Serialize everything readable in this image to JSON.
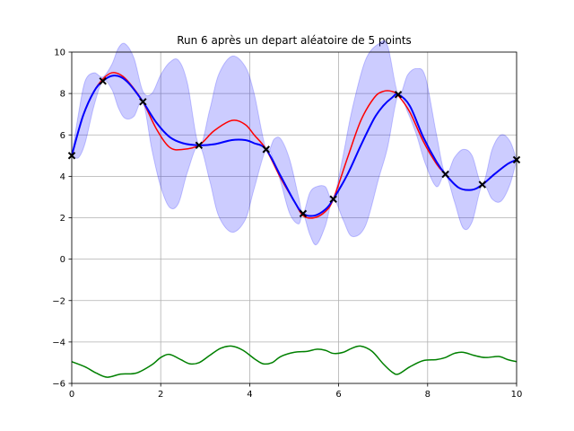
{
  "chart_data": {
    "type": "line",
    "title": "Run 6 après un depart aléatoire de 5 points",
    "xlabel": "",
    "ylabel": "",
    "xlim": [
      0,
      10
    ],
    "ylim": [
      -6,
      10
    ],
    "grid": true,
    "x_ticks": [
      0,
      2,
      4,
      6,
      8,
      10
    ],
    "y_ticks": [
      -6,
      -4,
      -2,
      0,
      2,
      4,
      6,
      8,
      10
    ],
    "x_tick_labels": [
      "0",
      "2",
      "4",
      "6",
      "8",
      "10"
    ],
    "y_tick_labels": [
      "−6",
      "−4",
      "−2",
      "0",
      "2",
      "4",
      "6",
      "8",
      "10"
    ],
    "colors": {
      "true_function": "#ff0000",
      "mean": "#0000ff",
      "band": "#0000ff",
      "acquisition": "#008000",
      "samples": "#000000"
    },
    "series": [
      {
        "role": "true-function",
        "x": [
          0,
          0.25,
          0.5,
          0.7,
          0.9,
          1.1,
          1.3,
          1.6,
          1.9,
          2.2,
          2.5,
          2.86,
          3.2,
          3.6,
          3.9,
          4.1,
          4.37,
          4.7,
          5.0,
          5.2,
          5.45,
          5.7,
          5.88,
          6.2,
          6.5,
          6.8,
          7.0,
          7.2,
          7.34,
          7.6,
          7.9,
          8.2,
          8.4,
          8.7,
          9.0,
          9.23,
          9.5,
          9.8,
          10
        ],
        "values": [
          5.0,
          6.9,
          8.1,
          8.7,
          9.0,
          8.9,
          8.5,
          7.6,
          6.3,
          5.4,
          5.3,
          5.5,
          6.2,
          6.7,
          6.5,
          6.0,
          5.3,
          3.9,
          2.8,
          2.1,
          2.0,
          2.3,
          2.9,
          4.9,
          6.7,
          7.8,
          8.1,
          8.1,
          7.9,
          7.1,
          5.7,
          4.6,
          4.1,
          3.45,
          3.35,
          3.6,
          4.1,
          4.6,
          4.8
        ]
      },
      {
        "role": "posterior-mean",
        "x": [
          0,
          0.25,
          0.5,
          0.7,
          0.9,
          1.1,
          1.3,
          1.6,
          1.9,
          2.2,
          2.5,
          2.86,
          3.2,
          3.6,
          3.9,
          4.1,
          4.37,
          4.7,
          5.0,
          5.2,
          5.45,
          5.7,
          5.88,
          6.2,
          6.5,
          6.8,
          7.0,
          7.2,
          7.34,
          7.6,
          7.9,
          8.2,
          8.4,
          8.7,
          9.0,
          9.23,
          9.5,
          9.8,
          10
        ],
        "values": [
          5.0,
          6.9,
          8.1,
          8.6,
          8.85,
          8.8,
          8.45,
          7.6,
          6.6,
          5.9,
          5.6,
          5.5,
          5.55,
          5.75,
          5.75,
          5.6,
          5.3,
          4.0,
          2.8,
          2.2,
          2.1,
          2.4,
          2.9,
          4.1,
          5.5,
          6.8,
          7.4,
          7.8,
          7.95,
          7.4,
          5.9,
          4.7,
          4.1,
          3.45,
          3.35,
          3.6,
          4.1,
          4.6,
          4.8
        ]
      },
      {
        "role": "confidence-upper",
        "x": [
          0,
          0.15,
          0.3,
          0.5,
          0.7,
          0.9,
          1.05,
          1.2,
          1.4,
          1.6,
          1.8,
          2.0,
          2.2,
          2.4,
          2.6,
          2.86,
          3.1,
          3.3,
          3.6,
          3.9,
          4.1,
          4.37,
          4.55,
          4.7,
          4.9,
          5.1,
          5.2,
          5.35,
          5.5,
          5.7,
          5.88,
          6.1,
          6.3,
          6.6,
          6.9,
          7.1,
          7.34,
          7.55,
          7.75,
          7.95,
          8.2,
          8.4,
          8.6,
          8.8,
          9.0,
          9.23,
          9.45,
          9.65,
          9.85,
          10
        ],
        "values": [
          5.0,
          7.0,
          8.6,
          9.0,
          8.8,
          9.4,
          10.2,
          10.4,
          9.7,
          8.1,
          8.0,
          8.9,
          9.5,
          9.6,
          8.5,
          5.5,
          7.2,
          8.9,
          9.8,
          9.3,
          8.0,
          5.3,
          5.8,
          5.8,
          4.8,
          3.0,
          2.2,
          3.2,
          3.5,
          3.5,
          2.9,
          5.0,
          7.2,
          9.6,
          10.4,
          10.3,
          7.95,
          8.9,
          9.2,
          8.8,
          6.0,
          4.1,
          4.9,
          5.3,
          5.0,
          3.6,
          5.3,
          6.0,
          5.7,
          4.8
        ]
      },
      {
        "role": "confidence-lower",
        "x": [
          0,
          0.15,
          0.3,
          0.5,
          0.7,
          0.9,
          1.05,
          1.2,
          1.4,
          1.6,
          1.8,
          2.0,
          2.2,
          2.4,
          2.6,
          2.86,
          3.1,
          3.3,
          3.6,
          3.9,
          4.1,
          4.37,
          4.55,
          4.7,
          4.9,
          5.1,
          5.2,
          5.35,
          5.5,
          5.7,
          5.88,
          6.1,
          6.3,
          6.6,
          6.9,
          7.1,
          7.34,
          7.55,
          7.75,
          7.95,
          8.2,
          8.4,
          8.6,
          8.8,
          9.0,
          9.23,
          9.45,
          9.65,
          9.85,
          10
        ],
        "values": [
          5.0,
          4.9,
          5.6,
          7.4,
          8.6,
          8.2,
          7.3,
          6.8,
          6.9,
          7.6,
          5.3,
          3.5,
          2.5,
          2.7,
          4.2,
          5.5,
          3.8,
          2.1,
          1.3,
          1.9,
          3.4,
          5.3,
          4.7,
          3.7,
          2.2,
          1.7,
          2.2,
          1.2,
          0.7,
          1.6,
          2.9,
          1.9,
          1.1,
          1.6,
          3.9,
          5.4,
          7.95,
          7.1,
          6.0,
          4.6,
          3.5,
          4.1,
          2.8,
          1.5,
          1.8,
          3.6,
          2.9,
          2.8,
          3.6,
          4.8
        ]
      },
      {
        "role": "acquisition",
        "x": [
          0,
          0.3,
          0.55,
          0.8,
          1.1,
          1.45,
          1.8,
          2.0,
          2.2,
          2.45,
          2.65,
          2.86,
          3.1,
          3.35,
          3.6,
          3.85,
          4.1,
          4.3,
          4.5,
          4.7,
          5.0,
          5.3,
          5.5,
          5.7,
          5.88,
          6.1,
          6.3,
          6.5,
          6.75,
          7.0,
          7.2,
          7.34,
          7.6,
          7.9,
          8.2,
          8.4,
          8.6,
          8.8,
          9.05,
          9.3,
          9.6,
          9.8,
          10
        ],
        "values": [
          -4.95,
          -5.2,
          -5.5,
          -5.7,
          -5.55,
          -5.5,
          -5.1,
          -4.75,
          -4.6,
          -4.85,
          -5.05,
          -5.0,
          -4.65,
          -4.3,
          -4.2,
          -4.4,
          -4.8,
          -5.05,
          -5.0,
          -4.7,
          -4.5,
          -4.45,
          -4.35,
          -4.4,
          -4.55,
          -4.5,
          -4.3,
          -4.2,
          -4.45,
          -5.05,
          -5.45,
          -5.55,
          -5.2,
          -4.9,
          -4.85,
          -4.75,
          -4.55,
          -4.5,
          -4.65,
          -4.75,
          -4.7,
          -4.85,
          -4.95
        ]
      }
    ],
    "sample_points": {
      "x": [
        0,
        0.7,
        1.6,
        2.86,
        4.37,
        5.2,
        5.88,
        7.34,
        8.4,
        9.23,
        10
      ],
      "values": [
        5.0,
        8.6,
        7.6,
        5.5,
        5.3,
        2.2,
        2.9,
        7.95,
        4.1,
        3.6,
        4.8
      ]
    }
  }
}
